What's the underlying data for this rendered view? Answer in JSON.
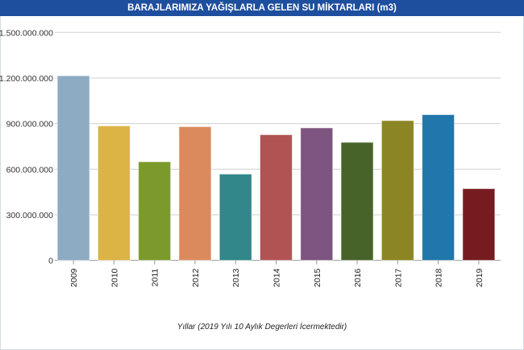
{
  "chart_data": {
    "type": "bar",
    "title": "BARAJLARIMIZA YAĞIŞLARLA GELEN SU MİKTARLARI (m3)",
    "xlabel": "Yıllar (2019 Yılı 10 Aylık Degerleri İcermektedir)",
    "ylabel": "",
    "categories": [
      "2009",
      "2010",
      "2011",
      "2012",
      "2013",
      "2014",
      "2015",
      "2016",
      "2017",
      "2018",
      "2019"
    ],
    "values": [
      1215000000,
      885000000,
      649000000,
      880000000,
      568000000,
      827000000,
      872000000,
      777000000,
      920000000,
      959000000,
      472000000
    ],
    "colors": [
      "#8eabc4",
      "#dcb345",
      "#7b9a2b",
      "#db8a5e",
      "#31878a",
      "#b15353",
      "#7e5480",
      "#48632a",
      "#8c8523",
      "#2176aa",
      "#761c21"
    ],
    "ylim": [
      0,
      1500000000
    ],
    "yticks": [
      0,
      300000000,
      600000000,
      900000000,
      1200000000,
      1500000000
    ],
    "ytick_labels": [
      "0",
      "300.000.000",
      "600.000.000",
      "900.000.000",
      "1.200.000.000",
      "1.500.000.000"
    ],
    "grid": true,
    "legend": "none",
    "title_bar_color": "#1e4f9e"
  }
}
